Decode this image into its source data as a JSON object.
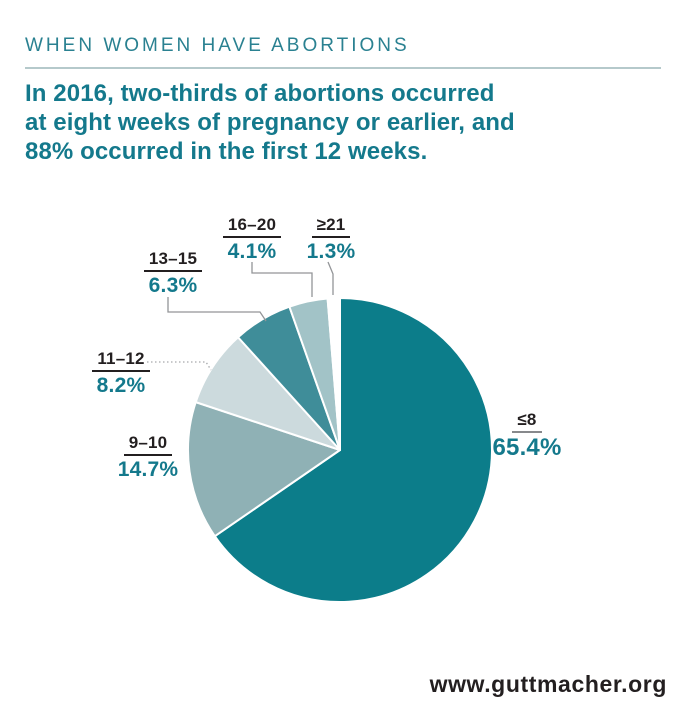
{
  "header": {
    "eyebrow": "WHEN WOMEN HAVE ABORTIONS",
    "title_lines": [
      "In 2016, two-thirds of abortions occurred",
      "at eight weeks of pregnancy or earlier, and",
      "88% occurred in the first 12 weeks."
    ]
  },
  "footer": {
    "website": "www.guttmacher.org"
  },
  "colors": {
    "accent_teal": "#14798c",
    "eyebrow_teal": "#2a8191",
    "divider_gray": "#b5c9cb",
    "label_black": "#231f20",
    "leader_gray": "#939598"
  },
  "chart_data": {
    "type": "pie",
    "title": "In 2016, two-thirds of abortions occurred at eight weeks of pregnancy or earlier, and 88% occurred in the first 12 weeks.",
    "units": "weeks of gestation",
    "categories": [
      "≤8",
      "9–10",
      "11–12",
      "13–15",
      "16–20",
      "≥21"
    ],
    "values": [
      65.4,
      14.7,
      8.2,
      6.3,
      4.1,
      1.3
    ],
    "percent_labels": [
      "65.4%",
      "14.7%",
      "8.2%",
      "6.3%",
      "4.1%",
      "1.3%"
    ],
    "colors": [
      "#0c7d8a",
      "#8fb1b5",
      "#ccdadd",
      "#3f8d99",
      "#a2c3c7",
      "#ffffff"
    ],
    "start_angle_deg": 0,
    "direction": "clockwise",
    "slice_stroke": "#ffffff",
    "legend_position": "outside-callouts",
    "grid": false
  }
}
